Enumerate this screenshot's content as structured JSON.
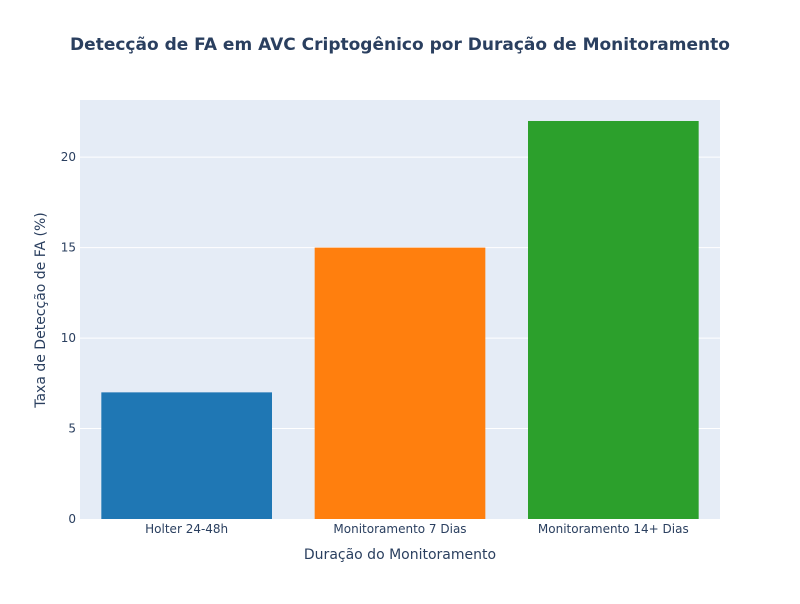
{
  "chart_data": {
    "type": "bar",
    "title": "Detecção de FA em AVC Criptogênico por Duração de Monitoramento",
    "xlabel": "Duração do Monitoramento",
    "ylabel": "Taxa de Detecção de FA (%)",
    "categories": [
      "Holter 24-48h",
      "Monitoramento 7 Dias",
      "Monitoramento 14+ Dias"
    ],
    "values": [
      7,
      15,
      22
    ],
    "colors": [
      "#1f77b4",
      "#ff7f0e",
      "#2ca02c"
    ],
    "ylim": [
      0,
      23.16
    ],
    "yticks": [
      0,
      5,
      10,
      15,
      20
    ],
    "grid": true,
    "background": "#e5ecf6"
  }
}
